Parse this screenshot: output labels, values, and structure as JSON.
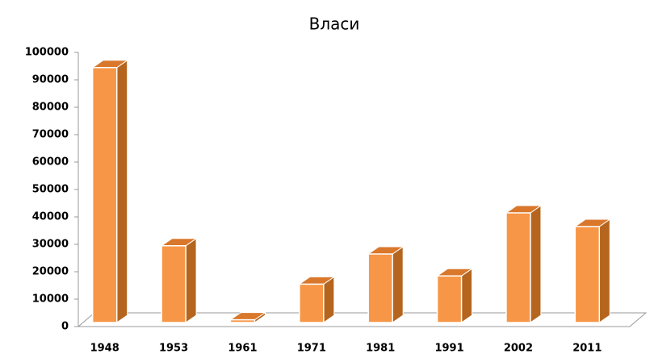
{
  "chart_data": {
    "type": "bar3d",
    "title": "Власи",
    "categories": [
      "1948",
      "1953",
      "1961",
      "1971",
      "1981",
      "1991",
      "2002",
      "2011"
    ],
    "values": [
      93000,
      28000,
      1000,
      14000,
      25000,
      17000,
      40000,
      35000
    ],
    "color": "#f79646",
    "ylim": [
      0,
      100000
    ],
    "yticks": [
      0,
      10000,
      20000,
      30000,
      40000,
      50000,
      60000,
      70000,
      80000,
      90000,
      100000
    ]
  }
}
